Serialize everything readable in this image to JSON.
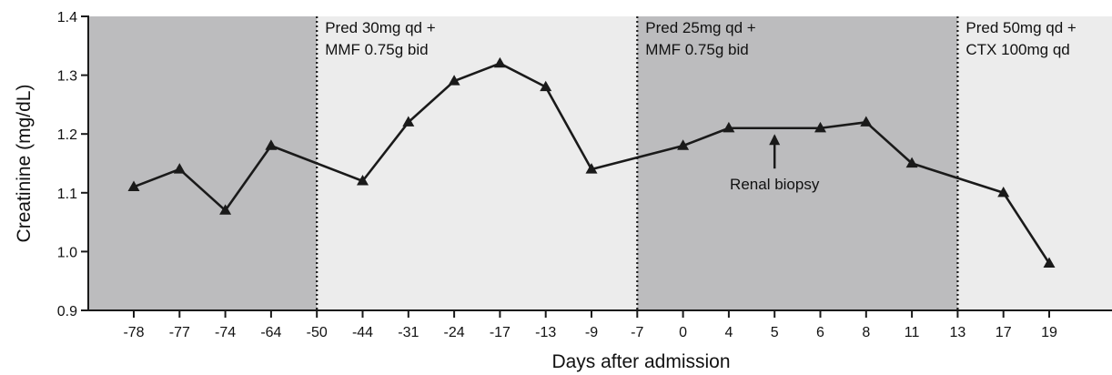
{
  "chart_data": {
    "type": "line",
    "xlabel": "Days after admission",
    "ylabel": "Creatinine (mg/dL)",
    "ylim": [
      0.9,
      1.4
    ],
    "yticks": [
      "0.9",
      "1.0",
      "1.1",
      "1.2",
      "1.3",
      "1.4"
    ],
    "categories": [
      "-78",
      "-77",
      "-74",
      "-64",
      "-50",
      "-44",
      "-31",
      "-24",
      "-17",
      "-13",
      "-9",
      "-7",
      "0",
      "4",
      "5",
      "6",
      "8",
      "11",
      "13",
      "17",
      "19"
    ],
    "series": [
      {
        "points": [
          {
            "x": "-78",
            "y": 1.11
          },
          {
            "x": "-77",
            "y": 1.14
          },
          {
            "x": "-74",
            "y": 1.07
          },
          {
            "x": "-64",
            "y": 1.18
          },
          {
            "x": "-44",
            "y": 1.12
          },
          {
            "x": "-31",
            "y": 1.22
          },
          {
            "x": "-24",
            "y": 1.29
          },
          {
            "x": "-17",
            "y": 1.32
          },
          {
            "x": "-13",
            "y": 1.28
          },
          {
            "x": "-9",
            "y": 1.14
          },
          {
            "x": "0",
            "y": 1.18
          },
          {
            "x": "4",
            "y": 1.21
          },
          {
            "x": "6",
            "y": 1.21
          },
          {
            "x": "8",
            "y": 1.22
          },
          {
            "x": "11",
            "y": 1.15
          },
          {
            "x": "17",
            "y": 1.1
          },
          {
            "x": "19",
            "y": 0.98
          }
        ],
        "marker": "triangle",
        "color": "#1a1a1a"
      }
    ],
    "bands": [
      {
        "from_start": true,
        "to": "-50",
        "color": "#bcbcbe"
      },
      {
        "from": "-50",
        "to": "-7",
        "color": "#ececec"
      },
      {
        "from": "-7",
        "to": "13",
        "color": "#bcbcbe"
      },
      {
        "from": "13",
        "to_end": true,
        "color": "#ececec"
      }
    ],
    "dividers": [
      "-50",
      "-7",
      "13"
    ],
    "phase_labels": [
      {
        "after": "-50",
        "lines": [
          "Pred 30mg qd +",
          "MMF 0.75g bid"
        ]
      },
      {
        "after": "-7",
        "lines": [
          "Pred 25mg qd +",
          "MMF 0.75g bid"
        ]
      },
      {
        "after": "13",
        "lines": [
          "Pred 50mg qd +",
          "CTX 100mg qd"
        ]
      }
    ],
    "annotation": {
      "text": "Renal biopsy",
      "x": "5",
      "arrow_to_y": 1.2
    },
    "grid": false
  }
}
